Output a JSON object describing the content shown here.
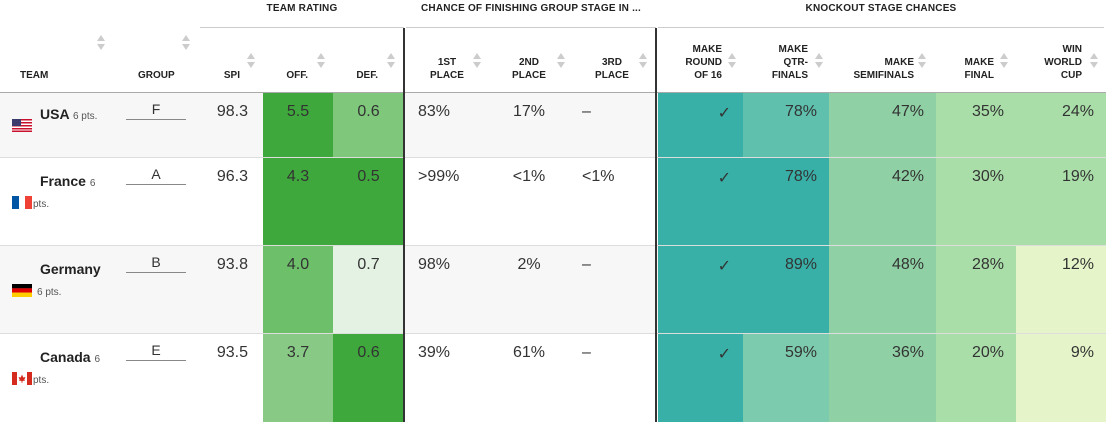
{
  "group_headers": {
    "team_rating": "TEAM RATING",
    "group_stage": "CHANCE OF FINISHING GROUP STAGE IN ...",
    "knockout": "KNOCKOUT STAGE CHANCES"
  },
  "columns": {
    "team": "TEAM",
    "group": "GROUP",
    "spi": "SPI",
    "off": "OFF.",
    "def": "DEF.",
    "first_l1": "1ST",
    "first_l2": "PLACE",
    "second_l1": "2ND",
    "second_l2": "PLACE",
    "third_l1": "3RD",
    "third_l2": "PLACE",
    "r16_l1": "MAKE",
    "r16_l2": "ROUND",
    "r16_l3": "OF 16",
    "qf_l1": "MAKE",
    "qf_l2": "QTR-",
    "qf_l3": "FINALS",
    "sf_l1": "MAKE",
    "sf_l2": "SEMIFINALS",
    "final_l1": "MAKE",
    "final_l2": "FINAL",
    "win_l1": "WIN",
    "win_l2": "WORLD",
    "win_l3": "CUP"
  },
  "colors": {
    "off_dark": "#3fa83c",
    "off_mid": "#6dbf6a",
    "off_light": "#88c985",
    "def_dark": "#3fa83c",
    "def_light": "#7fc77b",
    "def_pale": "#e3f2e2",
    "teal_dark": "#38b0a8",
    "teal_mid": "#5fc0ae",
    "teal_light": "#7dcbae",
    "green_mid": "#8fd0a5",
    "green_light": "#a9dea8",
    "green_pale": "#e5f5c9"
  },
  "rows": [
    {
      "team": "USA",
      "pts": "6 pts.",
      "flag": "usa-flag-icon",
      "group": "F",
      "spi": "98.3",
      "off": "5.5",
      "def": "0.6",
      "first": "83%",
      "second": "17%",
      "third": "–",
      "r16": "✓",
      "qf": "78%",
      "sf": "47%",
      "final": "35%",
      "win": "24%"
    },
    {
      "team": "France",
      "pts": "6",
      "pts2": "pts.",
      "flag": "france-flag-icon",
      "group": "A",
      "spi": "96.3",
      "off": "4.3",
      "def": "0.5",
      "first": ">99%",
      "second": "<1%",
      "third": "<1%",
      "r16": "✓",
      "qf": "78%",
      "sf": "42%",
      "final": "30%",
      "win": "19%"
    },
    {
      "team": "Germany",
      "pts": "6 pts.",
      "flag": "germany-flag-icon",
      "group": "B",
      "spi": "93.8",
      "off": "4.0",
      "def": "0.7",
      "first": "98%",
      "second": "2%",
      "third": "–",
      "r16": "✓",
      "qf": "89%",
      "sf": "48%",
      "final": "28%",
      "win": "12%"
    },
    {
      "team": "Canada",
      "pts": "6",
      "pts2": "pts.",
      "flag": "canada-flag-icon",
      "group": "E",
      "spi": "93.5",
      "off": "3.7",
      "def": "0.6",
      "first": "39%",
      "second": "61%",
      "third": "–",
      "r16": "✓",
      "qf": "59%",
      "sf": "36%",
      "final": "20%",
      "win": "9%"
    }
  ]
}
